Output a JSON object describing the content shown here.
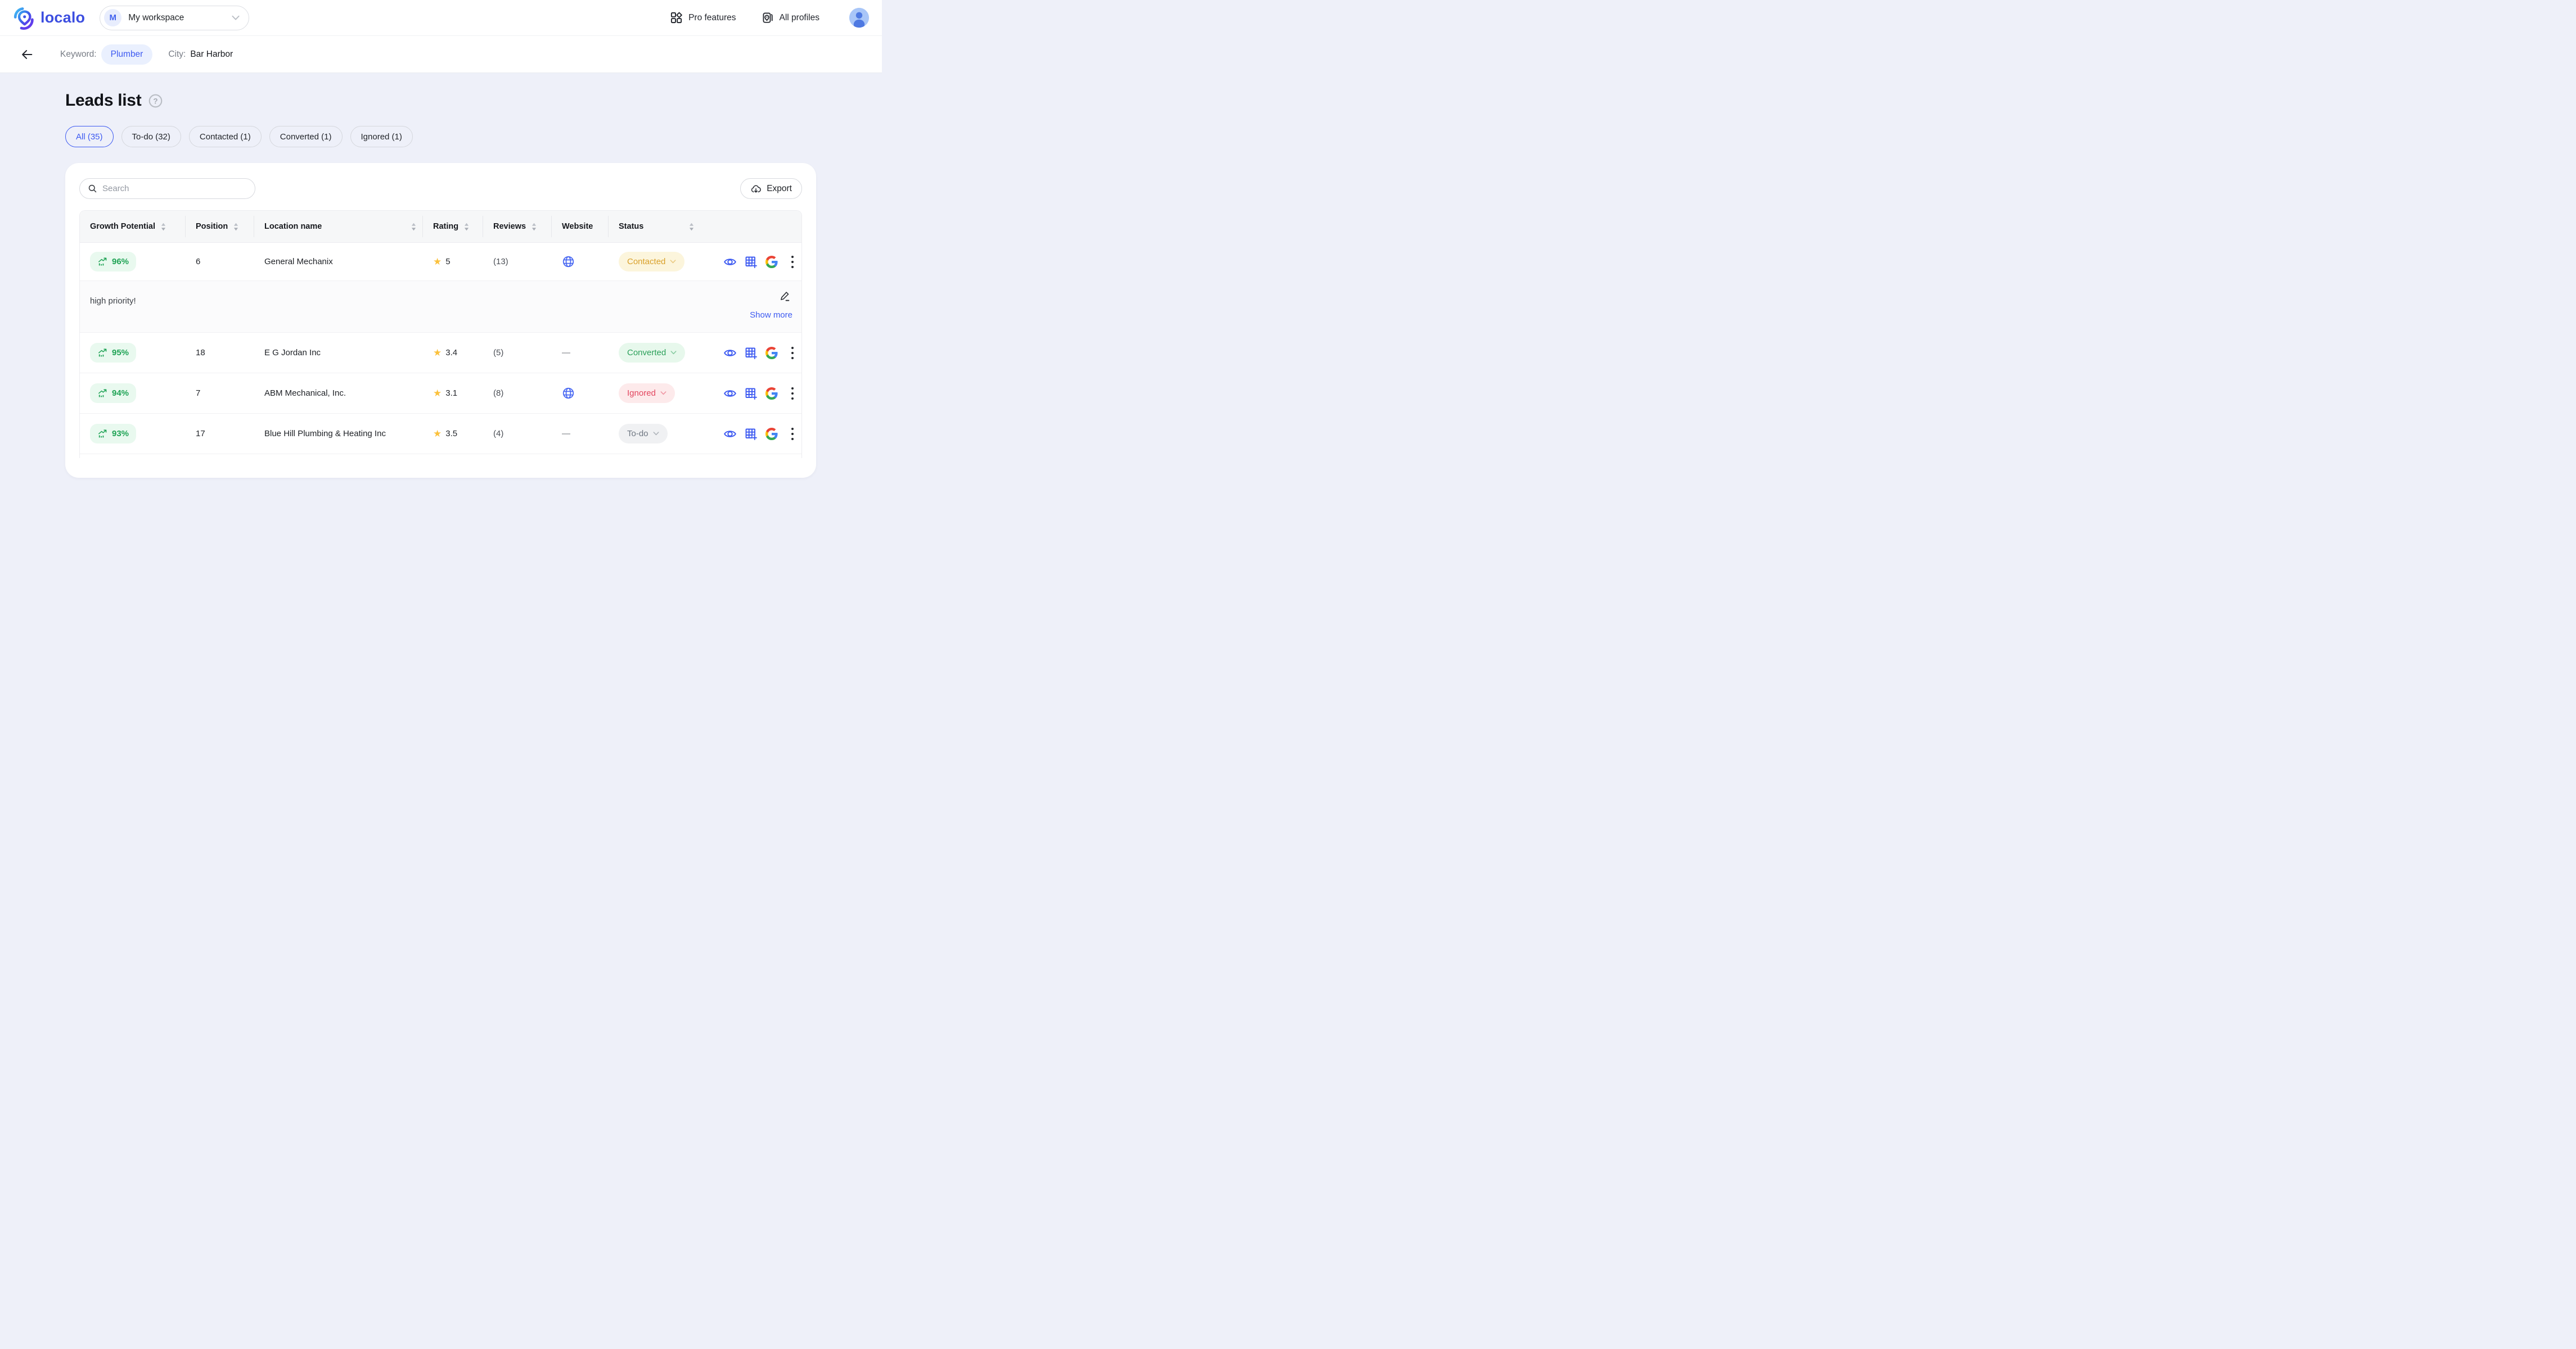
{
  "topbar": {
    "logo_text": "localo",
    "workspace": {
      "initial": "M",
      "name": "My workspace"
    },
    "pro_features_label": "Pro features",
    "all_profiles_label": "All profiles"
  },
  "context_bar": {
    "keyword_label": "Keyword:",
    "keyword_value": "Plumber",
    "city_label": "City:",
    "city_value": "Bar Harbor"
  },
  "page": {
    "title": "Leads list"
  },
  "filters": [
    {
      "label": "All (35)",
      "active": true
    },
    {
      "label": "To-do (32)",
      "active": false
    },
    {
      "label": "Contacted (1)",
      "active": false
    },
    {
      "label": "Converted (1)",
      "active": false
    },
    {
      "label": "Ignored (1)",
      "active": false
    }
  ],
  "toolbar": {
    "search_placeholder": "Search",
    "export_label": "Export"
  },
  "table": {
    "no_website_char": "—",
    "columns": [
      {
        "label": "Growth Potential",
        "sortable": true
      },
      {
        "label": "Position",
        "sortable": true
      },
      {
        "label": "Location name",
        "sortable": true
      },
      {
        "label": "Rating",
        "sortable": true
      },
      {
        "label": "Reviews",
        "sortable": true
      },
      {
        "label": "Website",
        "sortable": false
      },
      {
        "label": "Status",
        "sortable": true
      }
    ],
    "rows": [
      {
        "growth": "96%",
        "position": "6",
        "name": "General Mechanix",
        "rating": "5",
        "reviews": "(13)",
        "website": true,
        "status": "Contacted",
        "status_type": "contacted",
        "note": {
          "text": "high priority!",
          "show_more_label": "Show more"
        }
      },
      {
        "growth": "95%",
        "position": "18",
        "name": "E G Jordan Inc",
        "rating": "3.4",
        "reviews": "(5)",
        "website": false,
        "status": "Converted",
        "status_type": "converted"
      },
      {
        "growth": "94%",
        "position": "7",
        "name": "ABM Mechanical, Inc.",
        "rating": "3.1",
        "reviews": "(8)",
        "website": true,
        "status": "Ignored",
        "status_type": "ignored"
      },
      {
        "growth": "93%",
        "position": "17",
        "name": "Blue Hill Plumbing & Heating Inc",
        "rating": "3.5",
        "reviews": "(4)",
        "website": false,
        "status": "To-do",
        "status_type": "todo"
      }
    ]
  },
  "colors": {
    "accent_blue": "#3d5af1",
    "logo_blue": "#3c4ee0",
    "growth_green": "#1fa355",
    "growth_bg": "#e9f9ef",
    "star_yellow": "#fbc13c",
    "contacted_text": "#d9a02a",
    "contacted_bg": "#fcf5dc",
    "converted_text": "#2ba05a",
    "converted_bg": "#e7f8ec",
    "ignored_text": "#e2455e",
    "ignored_bg": "#fdeaeb",
    "todo_text": "#6e7681",
    "todo_bg": "#f0f1f3",
    "page_bg": "#eef0f9",
    "google_colors": [
      "#4285F4",
      "#EA4335",
      "#FBBC05",
      "#34A853"
    ]
  }
}
